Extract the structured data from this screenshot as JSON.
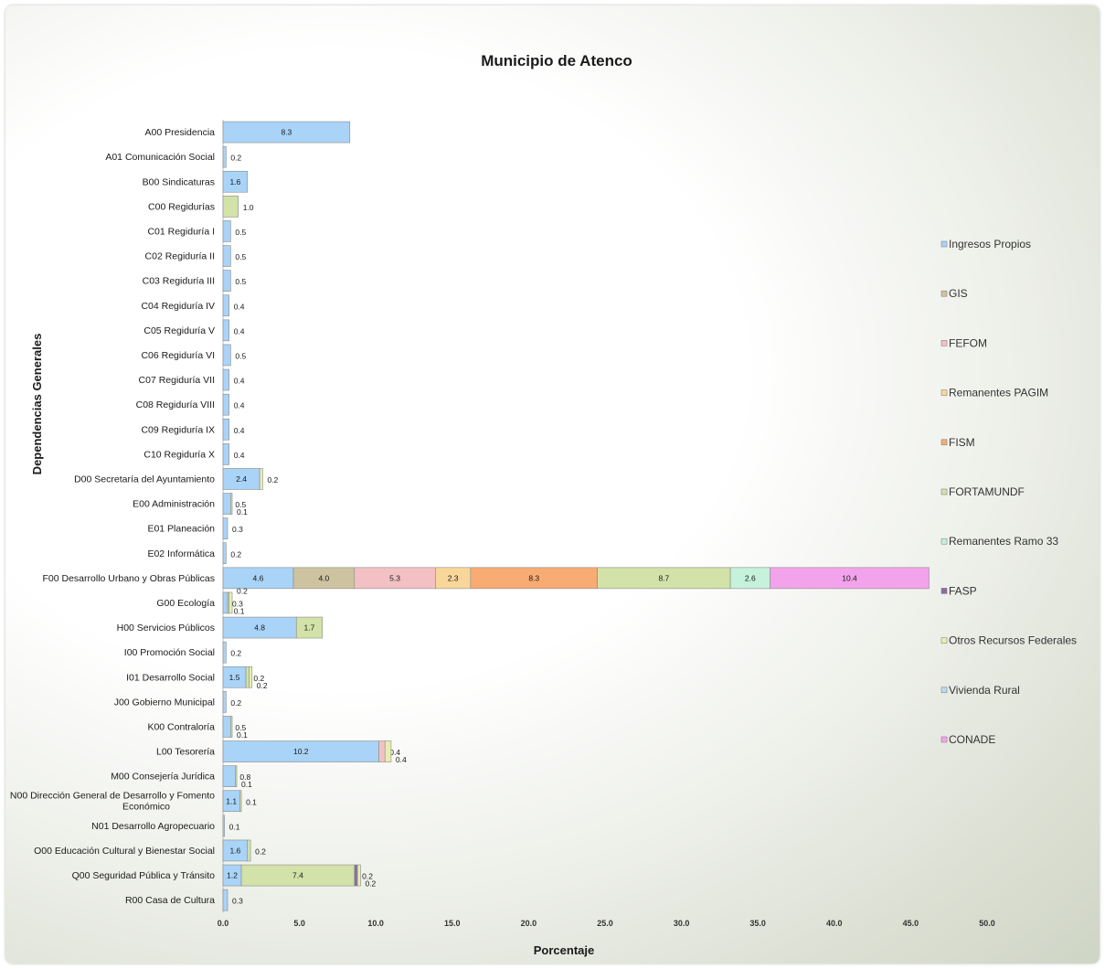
{
  "chart_data": {
    "type": "bar",
    "orientation": "horizontal",
    "stacked": true,
    "title": "Municipio de Atenco",
    "xlabel": "Porcentaje",
    "ylabel": "Dependencias Generales",
    "xlim": [
      0,
      50
    ],
    "xticks": [
      "0.0",
      "5.0",
      "10.0",
      "15.0",
      "20.0",
      "25.0",
      "30.0",
      "35.0",
      "40.0",
      "45.0",
      "50.0"
    ],
    "grid": false,
    "legend_position": "right",
    "categories": [
      [
        "A00 Presidencia"
      ],
      [
        "A01 Comunicación Social"
      ],
      [
        "B00 Sindicaturas"
      ],
      [
        "C00 Regidurías"
      ],
      [
        "C01 Regiduría I"
      ],
      [
        "C02 Regiduría II"
      ],
      [
        "C03 Regiduría III"
      ],
      [
        "C04 Regiduría IV"
      ],
      [
        "C05 Regiduría V"
      ],
      [
        "C06 Regiduría VI"
      ],
      [
        "C07 Regiduría VII"
      ],
      [
        "C08 Regiduría VIII"
      ],
      [
        "C09 Regiduría IX"
      ],
      [
        "C10 Regiduría X"
      ],
      [
        "D00 Secretaría del Ayuntamiento"
      ],
      [
        "E00 Administración"
      ],
      [
        "E01 Planeación"
      ],
      [
        "E02 Informática"
      ],
      [
        "F00 Desarrollo Urbano y Obras Públicas"
      ],
      [
        "G00 Ecología"
      ],
      [
        "H00 Servicios Públicos"
      ],
      [
        "I00 Promoción Social"
      ],
      [
        "I01 Desarrollo Social"
      ],
      [
        "J00 Gobierno Municipal"
      ],
      [
        "K00 Contraloría"
      ],
      [
        "L00 Tesorería"
      ],
      [
        "M00 Consejería Jurídica"
      ],
      [
        "N00 Dirección General de Desarrollo y Fomento",
        "Económico"
      ],
      [
        "N01 Desarrollo Agropecuario"
      ],
      [
        "O00 Educación Cultural y Bienestar Social"
      ],
      [
        "Q00 Seguridad Pública y Tránsito"
      ],
      [
        "R00 Casa de Cultura"
      ]
    ],
    "series": [
      {
        "name": "Ingresos Propios",
        "color": "#a9d3f7",
        "values": [
          8.3,
          0.2,
          1.6,
          0,
          0.5,
          0.5,
          0.5,
          0.4,
          0.4,
          0.5,
          0.4,
          0.4,
          0.4,
          0.4,
          2.4,
          0.5,
          0.3,
          0.2,
          4.6,
          0.3,
          4.8,
          0.2,
          1.5,
          0.2,
          0.5,
          10.2,
          0.8,
          1.1,
          0.1,
          1.6,
          1.2,
          0.3
        ]
      },
      {
        "name": "GIS",
        "color": "#cdc3a0",
        "values": [
          0,
          0,
          0,
          0,
          0,
          0,
          0,
          0,
          0,
          0,
          0,
          0,
          0,
          0,
          0,
          0,
          0,
          0,
          4.0,
          0,
          0,
          0,
          0,
          0,
          0,
          0,
          0,
          0,
          0,
          0,
          0,
          0
        ]
      },
      {
        "name": "FEFOM",
        "color": "#f3c1c3",
        "values": [
          0,
          0,
          0,
          0,
          0,
          0,
          0,
          0,
          0,
          0,
          0,
          0,
          0,
          0,
          0,
          0,
          0,
          0,
          5.3,
          0,
          0,
          0,
          0,
          0,
          0,
          0.4,
          0,
          0,
          0,
          0,
          0,
          0
        ]
      },
      {
        "name": "Remanentes PAGIM",
        "color": "#f9d79a",
        "values": [
          0,
          0,
          0,
          0,
          0,
          0,
          0,
          0,
          0,
          0,
          0,
          0,
          0,
          0,
          0,
          0,
          0,
          0,
          2.3,
          0,
          0,
          0,
          0,
          0,
          0,
          0,
          0,
          0,
          0,
          0,
          0,
          0
        ]
      },
      {
        "name": "FISM",
        "color": "#f8ab72",
        "values": [
          0,
          0,
          0,
          0,
          0,
          0,
          0,
          0,
          0,
          0,
          0,
          0,
          0,
          0,
          0,
          0,
          0,
          0,
          8.3,
          0,
          0,
          0,
          0,
          0,
          0,
          0,
          0,
          0,
          0,
          0,
          0,
          0
        ]
      },
      {
        "name": "FORTAMUNDF",
        "color": "#d2e2a8",
        "values": [
          0,
          0,
          0,
          1.0,
          0,
          0,
          0,
          0,
          0,
          0,
          0,
          0,
          0,
          0,
          0,
          0.1,
          0,
          0,
          8.7,
          0.1,
          1.7,
          0,
          0.2,
          0,
          0.1,
          0,
          0.1,
          0.1,
          0,
          0.2,
          7.4,
          0
        ]
      },
      {
        "name": "Remanentes Ramo 33",
        "color": "#c6f1da",
        "values": [
          0,
          0,
          0,
          0,
          0,
          0,
          0,
          0,
          0,
          0,
          0,
          0,
          0,
          0,
          0,
          0,
          0,
          0,
          2.6,
          0,
          0,
          0,
          0,
          0,
          0,
          0,
          0,
          0,
          0,
          0,
          0,
          0
        ]
      },
      {
        "name": "FASP",
        "color": "#8c6fa0",
        "values": [
          0,
          0,
          0,
          0,
          0,
          0,
          0,
          0,
          0,
          0,
          0,
          0,
          0,
          0,
          0,
          0,
          0,
          0,
          0,
          0,
          0,
          0,
          0,
          0,
          0,
          0,
          0,
          0,
          0,
          0,
          0.2,
          0
        ]
      },
      {
        "name": "Otros Recursos Federales",
        "color": "#e6efb0",
        "values": [
          0,
          0,
          0,
          0,
          0,
          0,
          0,
          0,
          0,
          0,
          0,
          0,
          0,
          0,
          0.2,
          0,
          0,
          0,
          0,
          0.2,
          0,
          0,
          0.2,
          0,
          0,
          0.4,
          0,
          0,
          0,
          0,
          0.2,
          0
        ]
      },
      {
        "name": "Vivienda Rural",
        "color": "#bcd9ef",
        "values": [
          0,
          0,
          0,
          0,
          0,
          0,
          0,
          0,
          0,
          0,
          0,
          0,
          0,
          0,
          0,
          0,
          0,
          0,
          0,
          0,
          0,
          0,
          0,
          0,
          0,
          0,
          0,
          0,
          0,
          0,
          0,
          0
        ]
      },
      {
        "name": "CONADE",
        "color": "#f3a3ec",
        "values": [
          0,
          0,
          0,
          0,
          0,
          0,
          0,
          0,
          0,
          0,
          0,
          0,
          0,
          0,
          0,
          0,
          0,
          0,
          10.4,
          0,
          0,
          0,
          0,
          0,
          0,
          0,
          0,
          0,
          0,
          0,
          0,
          0
        ]
      }
    ]
  }
}
